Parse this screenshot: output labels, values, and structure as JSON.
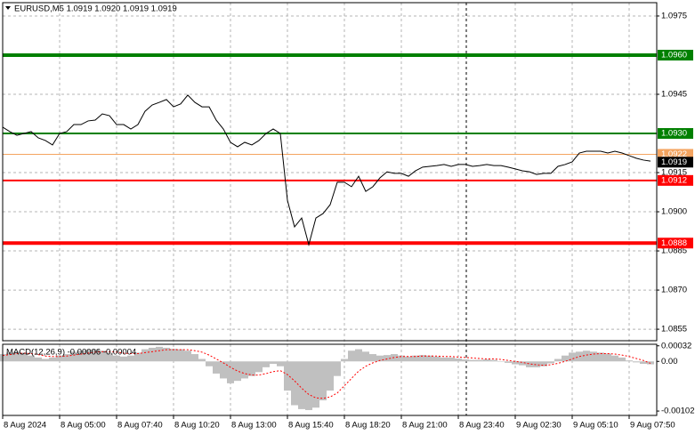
{
  "chart_data": [
    {
      "type": "line",
      "title": "EURUSD,M5  1.0919 1.0920 1.0919 1.0919",
      "categories": [
        "8 Aug 2024",
        null,
        null,
        null,
        null,
        null,
        null,
        null,
        "8 Aug 05:00",
        null,
        null,
        null,
        null,
        null,
        null,
        null,
        "8 Aug 07:40",
        null,
        null,
        null,
        null,
        null,
        null,
        null,
        "8 Aug 10:20",
        null,
        null,
        null,
        null,
        null,
        null,
        null,
        "8 Aug 13:00",
        null,
        null,
        null,
        null,
        null,
        null,
        null,
        "8 Aug 15:40",
        null,
        null,
        null,
        null,
        null,
        null,
        null,
        "8 Aug 18:20",
        null,
        null,
        null,
        null,
        null,
        null,
        null,
        "8 Aug 21:00",
        null,
        null,
        null,
        null,
        null,
        null,
        null,
        "8 Aug 23:40",
        null,
        null,
        null,
        null,
        null,
        null,
        null,
        "9 Aug 02:30",
        null,
        null,
        null,
        null,
        null,
        null,
        null,
        "9 Aug 05:10",
        null,
        null,
        null,
        null,
        null,
        null,
        null,
        "9 Aug 07:50",
        null,
        null,
        null
      ],
      "series": [
        {
          "color": "#000000",
          "values": [
            1.09324,
            1.09307,
            1.09293,
            1.093,
            1.09307,
            1.09283,
            1.09273,
            1.09256,
            1.093,
            1.09307,
            1.09334,
            1.09334,
            1.09348,
            1.09351,
            1.09375,
            1.09368,
            1.09334,
            1.09334,
            1.09317,
            1.09334,
            1.09385,
            1.09409,
            1.09419,
            1.0943,
            1.09402,
            1.09413,
            1.09447,
            1.09419,
            1.09402,
            1.09402,
            1.09351,
            1.09317,
            1.09266,
            1.09249,
            1.09266,
            1.09256,
            1.09273,
            1.093,
            1.09317,
            1.093,
            1.09044,
            1.08942,
            1.08976,
            1.08874,
            1.08976,
            1.08993,
            1.09027,
            1.09113,
            1.09113,
            1.09096,
            1.09136,
            1.09078,
            1.09096,
            1.0913,
            1.09153,
            1.09147,
            1.09147,
            1.09136,
            1.09157,
            1.09171,
            1.09174,
            1.09177,
            1.09181,
            1.09174,
            1.09181,
            1.09181,
            1.09174,
            1.09177,
            1.09181,
            1.09177,
            1.09177,
            1.09171,
            1.09164,
            1.09157,
            1.09153,
            1.09143,
            1.09147,
            1.09147,
            1.09174,
            1.09181,
            1.09191,
            1.09225,
            1.09232,
            1.09232,
            1.09232,
            1.09225,
            1.09232,
            1.09225,
            1.09215,
            1.09205,
            1.09198,
            1.09194
          ]
        }
      ],
      "levels": [
        {
          "value": 1.096,
          "label": "1.0960",
          "color": "#008000",
          "line_weight": "thick"
        },
        {
          "value": 1.093,
          "label": "1.0930",
          "color": "#008000",
          "line_weight": "normal"
        },
        {
          "value": 1.0922,
          "label": "1.0922",
          "color": "#f4a460",
          "line_weight": "thin"
        },
        {
          "value": 1.0912,
          "label": "1.0912",
          "color": "#ff0000",
          "line_weight": "normal"
        },
        {
          "value": 1.0888,
          "label": "1.0888",
          "color": "#ff0000",
          "line_weight": "thick"
        }
      ],
      "bid": {
        "value": 1.0919,
        "label": "1.0919",
        "color": "#000000"
      },
      "ylim": [
        1.08506,
        1.09801
      ],
      "yticks": [
        1.0975,
        1.0945,
        1.0915,
        {
          "value": 1.09,
          "label": "1.0900"
        },
        1.0885,
        {
          "value": 1.087,
          "label": "1.0870"
        },
        1.0855
      ],
      "grid": true
    },
    {
      "type": "macd",
      "title": "MACD(12,26,9) -0.00006 -0.00004",
      "series": [
        {
          "kind": "histogram",
          "color": "#c0c0c0",
          "values": [
            0.00015,
            0.00018,
            0.0002,
            0.00018,
            0.00012,
            8e-05,
            5e-05,
            8e-05,
            0.00012,
            0.00015,
            0.0002,
            0.00022,
            0.00024,
            0.00025,
            0.00022,
            0.00018,
            0.00012,
            0.0001,
            0.00012,
            0.00018,
            0.00025,
            0.00028,
            0.0003,
            0.00028,
            0.00026,
            0.00025,
            0.00022,
            0.00015,
            5e-05,
            -0.0001,
            -0.00025,
            -0.00035,
            -0.00045,
            -0.0004,
            -0.00035,
            -0.0003,
            -0.00022,
            -0.00012,
            -5e-05,
            -0.0001,
            -0.0006,
            -0.0009,
            -0.00098,
            -0.001,
            -0.00095,
            -0.0008,
            -0.0006,
            -0.0003,
            5e-05,
            0.00022,
            0.00025,
            0.0002,
            0.00015,
            0.00012,
            0.00013,
            0.00015,
            0.00012,
            0.0001,
            0.00012,
            0.00013,
            0.00012,
            0.0001,
            8e-05,
            8e-05,
            6e-05,
            4e-05,
            3e-05,
            3e-05,
            4e-05,
            3e-05,
            0,
            -3e-05,
            -6e-05,
            -8e-05,
            -0.00012,
            -0.00012,
            -0.0001,
            -4e-05,
            5e-05,
            0.00012,
            0.00018,
            0.0002,
            0.00022,
            0.0002,
            0.00018,
            0.00016,
            0.00012,
            8e-05,
            2e-05,
            -2e-05,
            -5e-05,
            -6e-05
          ]
        },
        {
          "kind": "signal",
          "color": "#ff0000",
          "values": [
            0.00012,
            0.00014,
            0.00016,
            0.00017,
            0.00016,
            0.00014,
            0.00011,
            0.0001,
            0.0001,
            0.00011,
            0.00013,
            0.00015,
            0.00017,
            0.00019,
            0.0002,
            0.0002,
            0.00019,
            0.00017,
            0.00016,
            0.00016,
            0.00018,
            0.0002,
            0.00022,
            0.00024,
            0.00024,
            0.00024,
            0.00024,
            0.00022,
            0.00019,
            0.00013,
            5e-05,
            -3e-05,
            -0.00012,
            -0.0002,
            -0.00025,
            -0.00028,
            -0.00028,
            -0.00025,
            -0.00021,
            -0.00019,
            -0.00027,
            -0.0004,
            -0.00055,
            -0.00068,
            -0.00075,
            -0.00076,
            -0.00073,
            -0.00065,
            -0.0005,
            -0.00035,
            -0.0002,
            -0.0001,
            -3e-05,
            2e-05,
            5e-05,
            8e-05,
            0.0001,
            0.0001,
            0.0001,
            0.00011,
            0.00011,
            0.00011,
            0.0001,
            0.0001,
            9e-05,
            8e-05,
            7e-05,
            6e-05,
            5e-05,
            5e-05,
            4e-05,
            2e-05,
            0,
            -2e-05,
            -5e-05,
            -7e-05,
            -8e-05,
            -7e-05,
            -4e-05,
            0,
            5e-05,
            0.0001,
            0.00013,
            0.00015,
            0.00016,
            0.00016,
            0.00015,
            0.00013,
            0.0001,
            6e-05,
            2e-05,
            -4e-05
          ]
        }
      ],
      "ylim": [
        -0.00111,
        0.000352
      ],
      "yticks": [
        0.00032,
        {
          "value": 0,
          "label": "0.00"
        },
        -0.00102
      ]
    }
  ]
}
